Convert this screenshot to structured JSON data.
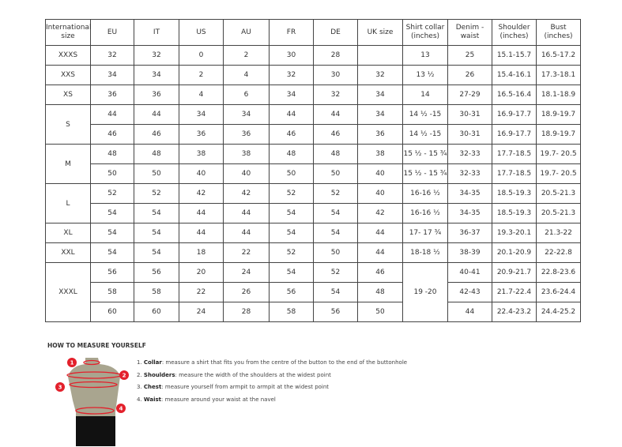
{
  "headers": [
    "International size",
    "EU",
    "IT",
    "US",
    "AU",
    "FR",
    "DE",
    "UK size",
    "Shirt collar (inches)",
    "Denim - waist",
    "Shoulder (inches)",
    "Bust (inches)"
  ],
  "groups": [
    {
      "size": "XXXS",
      "rows": [
        [
          "32",
          "32",
          "0",
          "2",
          "30",
          "28",
          "",
          "13",
          "25",
          "15.1-15.7",
          "16.5-17.2"
        ]
      ]
    },
    {
      "size": "XXS",
      "rows": [
        [
          "34",
          "34",
          "2",
          "4",
          "32",
          "30",
          "32",
          "13 ½",
          "26",
          "15.4-16.1",
          "17.3-18.1"
        ]
      ]
    },
    {
      "size": "XS",
      "rows": [
        [
          "36",
          "36",
          "4",
          "6",
          "34",
          "32",
          "34",
          "14",
          "27-29",
          "16.5-16.4",
          "18.1-18.9"
        ]
      ]
    },
    {
      "size": "S",
      "rows": [
        [
          "44",
          "44",
          "34",
          "34",
          "44",
          "44",
          "34",
          "14 ½ -15",
          "30-31",
          "16.9-17.7",
          "18.9-19.7"
        ],
        [
          "46",
          "46",
          "36",
          "36",
          "46",
          "46",
          "36",
          "14 ½ -15",
          "30-31",
          "16.9-17.7",
          "18.9-19.7"
        ]
      ]
    },
    {
      "size": "M",
      "rows": [
        [
          "48",
          "48",
          "38",
          "38",
          "48",
          "48",
          "38",
          "15 ½ - 15 ¾",
          "32-33",
          "17.7-18.5",
          "19.7- 20.5"
        ],
        [
          "50",
          "50",
          "40",
          "40",
          "50",
          "50",
          "40",
          "15 ½ - 15 ¾",
          "32-33",
          "17.7-18.5",
          "19.7- 20.5"
        ]
      ]
    },
    {
      "size": "L",
      "rows": [
        [
          "52",
          "52",
          "42",
          "42",
          "52",
          "52",
          "40",
          "16-16 ½",
          "34-35",
          "18.5-19.3",
          "20.5-21.3"
        ],
        [
          "54",
          "54",
          "44",
          "44",
          "54",
          "54",
          "42",
          "16-16 ½",
          "34-35",
          "18.5-19.3",
          "20.5-21.3"
        ]
      ]
    },
    {
      "size": "XL",
      "rows": [
        [
          "54",
          "54",
          "44",
          "44",
          "54",
          "54",
          "44",
          "17- 17 ¾",
          "36-37",
          "19.3-20.1",
          "21.3-22"
        ]
      ]
    },
    {
      "size": "XXL",
      "rows": [
        [
          "54",
          "54",
          "18",
          "22",
          "52",
          "50",
          "44",
          "18-18 ½",
          "38-39",
          "20.1-20.9",
          "22-22.8"
        ]
      ]
    },
    {
      "size": "XXXL",
      "rows": [
        [
          "56",
          "56",
          "20",
          "24",
          "54",
          "52",
          "46",
          "19 -20",
          "40-41",
          "20.9-21.7",
          "22.8-23.6"
        ],
        [
          "58",
          "58",
          "22",
          "26",
          "56",
          "54",
          "48",
          null,
          "42-43",
          "21.7-22.4",
          "23.6-24.4"
        ],
        [
          "60",
          "60",
          "24",
          "28",
          "58",
          "56",
          "50",
          null,
          "44",
          "22.4-23.2",
          "24.4-25.2"
        ]
      ]
    }
  ],
  "howto": {
    "title": "HOW TO MEASURE YOURSELF",
    "steps": [
      {
        "num": "1.",
        "label": "Collar",
        "text": ": measure a shirt that fits you from the centre of the button to the end of the buttonhole"
      },
      {
        "num": "2.",
        "label": "Shoulders",
        "text": ": measure the width of the shoulders at the widest point"
      },
      {
        "num": "3.",
        "label": "Chest",
        "text": ": measure yourself from armpit to armpit at the widest point"
      },
      {
        "num": "4.",
        "label": "Waist",
        "text": ": measure around your waist at the navel"
      }
    ],
    "markers": [
      "1",
      "2",
      "3",
      "4"
    ],
    "marker_color": "#e3202b",
    "torso_color": "#a9a58f"
  }
}
